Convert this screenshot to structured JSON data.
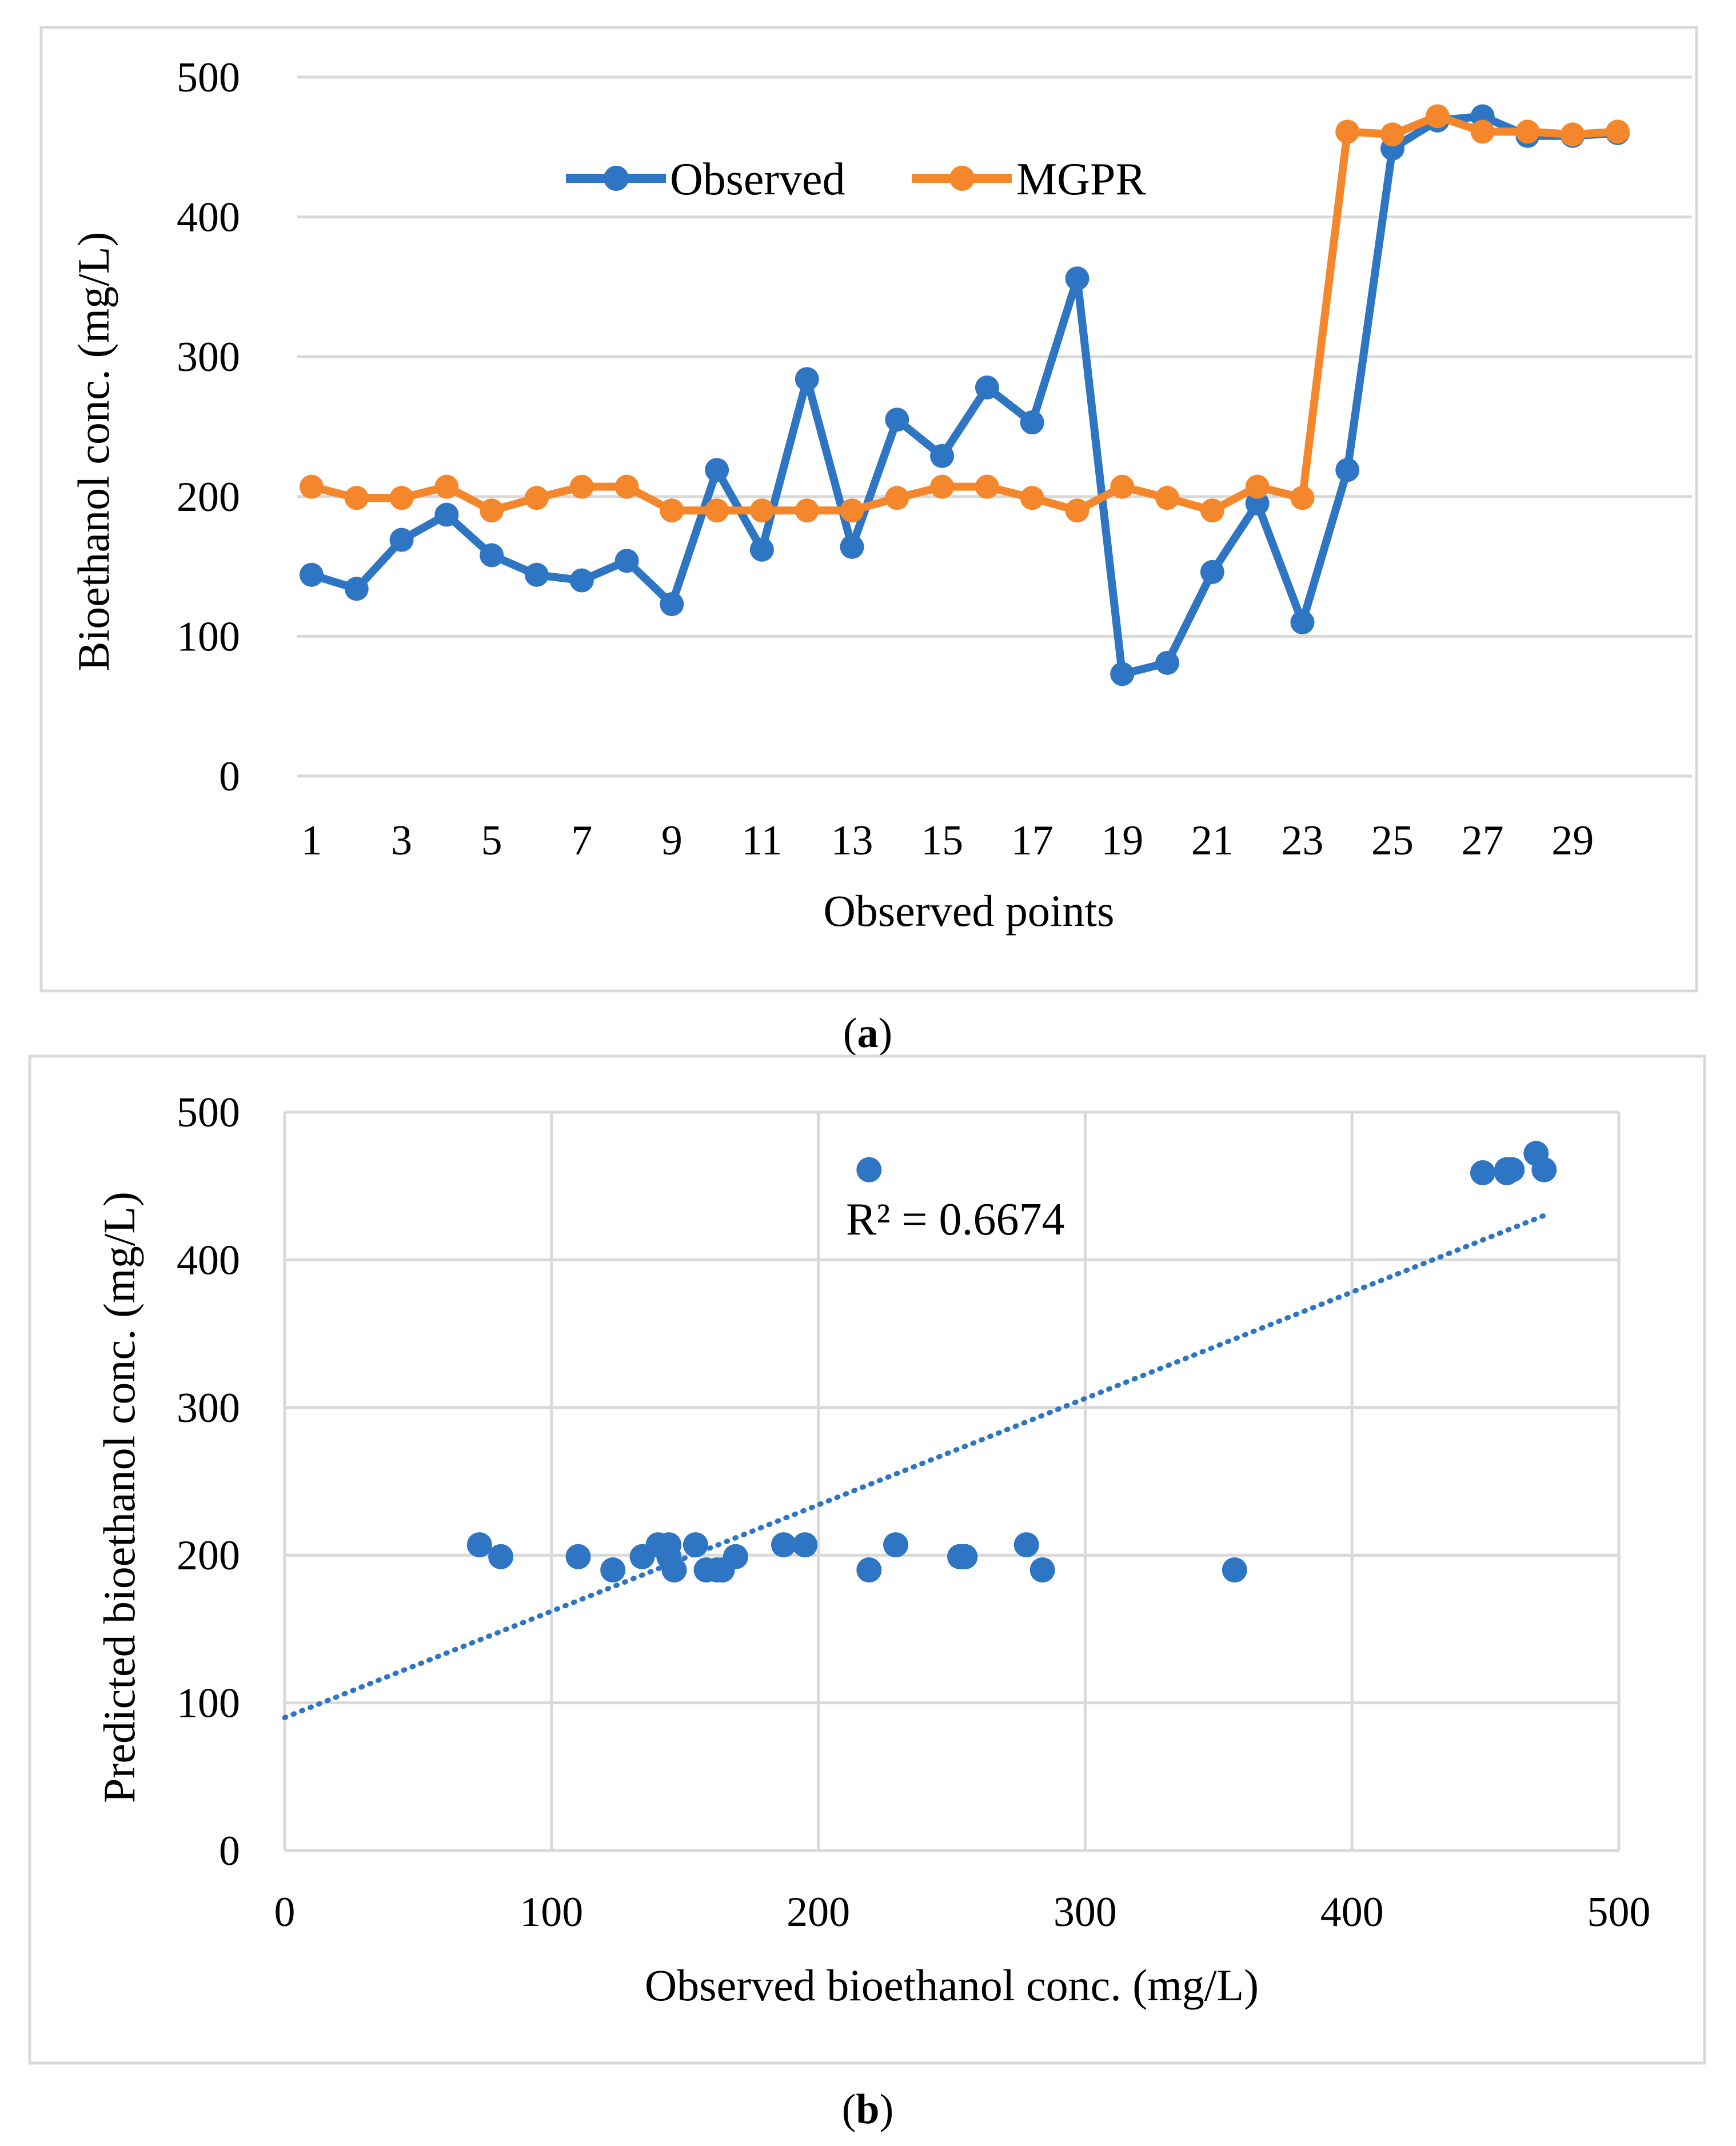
{
  "colors": {
    "observed": "#2E75C3",
    "mgpr": "#F4862C",
    "grid": "#D9D9D9",
    "frame": "#D9D9D9"
  },
  "chart_data": [
    {
      "type": "line",
      "caption": {
        "open": "(",
        "label": "a",
        "close": ")"
      },
      "xlabel": "Observed points",
      "ylabel": "Bioethanol conc. (mg/L)",
      "ylim": [
        0,
        500
      ],
      "yticks": [
        "0",
        "100",
        "200",
        "300",
        "400",
        "500"
      ],
      "xtick_labels": [
        "1",
        "3",
        "5",
        "7",
        "9",
        "11",
        "13",
        "15",
        "17",
        "19",
        "21",
        "23",
        "25",
        "27",
        "29"
      ],
      "x": [
        1,
        2,
        3,
        4,
        5,
        6,
        7,
        8,
        9,
        10,
        11,
        12,
        13,
        14,
        15,
        16,
        17,
        18,
        19,
        20,
        21,
        22,
        23,
        24,
        25,
        26,
        27,
        28,
        29,
        30
      ],
      "legend_position": "top-center",
      "series": [
        {
          "name": "Observed",
          "color": "#2E75C3",
          "values": [
            144,
            134,
            169,
            187,
            158,
            144,
            140,
            154,
            123,
            219,
            162,
            284,
            164,
            255,
            229,
            278,
            253,
            356,
            73,
            81,
            146,
            195,
            110,
            219,
            449,
            469,
            472,
            458,
            458,
            460
          ]
        },
        {
          "name": "MGPR",
          "color": "#F4862C",
          "values": [
            207,
            199,
            199,
            207,
            190,
            199,
            207,
            207,
            190,
            190,
            190,
            190,
            190,
            199,
            207,
            207,
            199,
            190,
            207,
            199,
            190,
            207,
            199,
            461,
            459,
            472,
            461,
            461,
            459,
            461
          ]
        }
      ]
    },
    {
      "type": "scatter",
      "caption": {
        "open": "(",
        "label": "b",
        "close": ")"
      },
      "xlabel": "Observed bioethanol conc. (mg/L)",
      "ylabel": "Predicted bioethanol conc. (mg/L)",
      "xlim": [
        0,
        500
      ],
      "ylim": [
        0,
        500
      ],
      "xticks": [
        "0",
        "100",
        "200",
        "300",
        "400",
        "500"
      ],
      "yticks": [
        "0",
        "100",
        "200",
        "300",
        "400",
        "500"
      ],
      "grid": true,
      "annotation": "R² = 0.6674",
      "trendline": {
        "style": "dotted",
        "points": [
          [
            0,
            90
          ],
          [
            472,
            430
          ]
        ]
      },
      "points": [
        [
          144,
          207
        ],
        [
          134,
          199
        ],
        [
          169,
          199
        ],
        [
          187,
          207
        ],
        [
          158,
          190
        ],
        [
          144,
          199
        ],
        [
          140,
          207
        ],
        [
          154,
          207
        ],
        [
          123,
          190
        ],
        [
          219,
          190
        ],
        [
          162,
          190
        ],
        [
          284,
          190
        ],
        [
          164,
          190
        ],
        [
          255,
          199
        ],
        [
          229,
          207
        ],
        [
          278,
          207
        ],
        [
          253,
          199
        ],
        [
          356,
          190
        ],
        [
          73,
          207
        ],
        [
          81,
          199
        ],
        [
          146,
          190
        ],
        [
          195,
          207
        ],
        [
          110,
          199
        ],
        [
          219,
          461
        ],
        [
          449,
          459
        ],
        [
          469,
          472
        ],
        [
          472,
          461
        ],
        [
          458,
          461
        ],
        [
          458,
          459
        ],
        [
          460,
          461
        ]
      ]
    }
  ]
}
